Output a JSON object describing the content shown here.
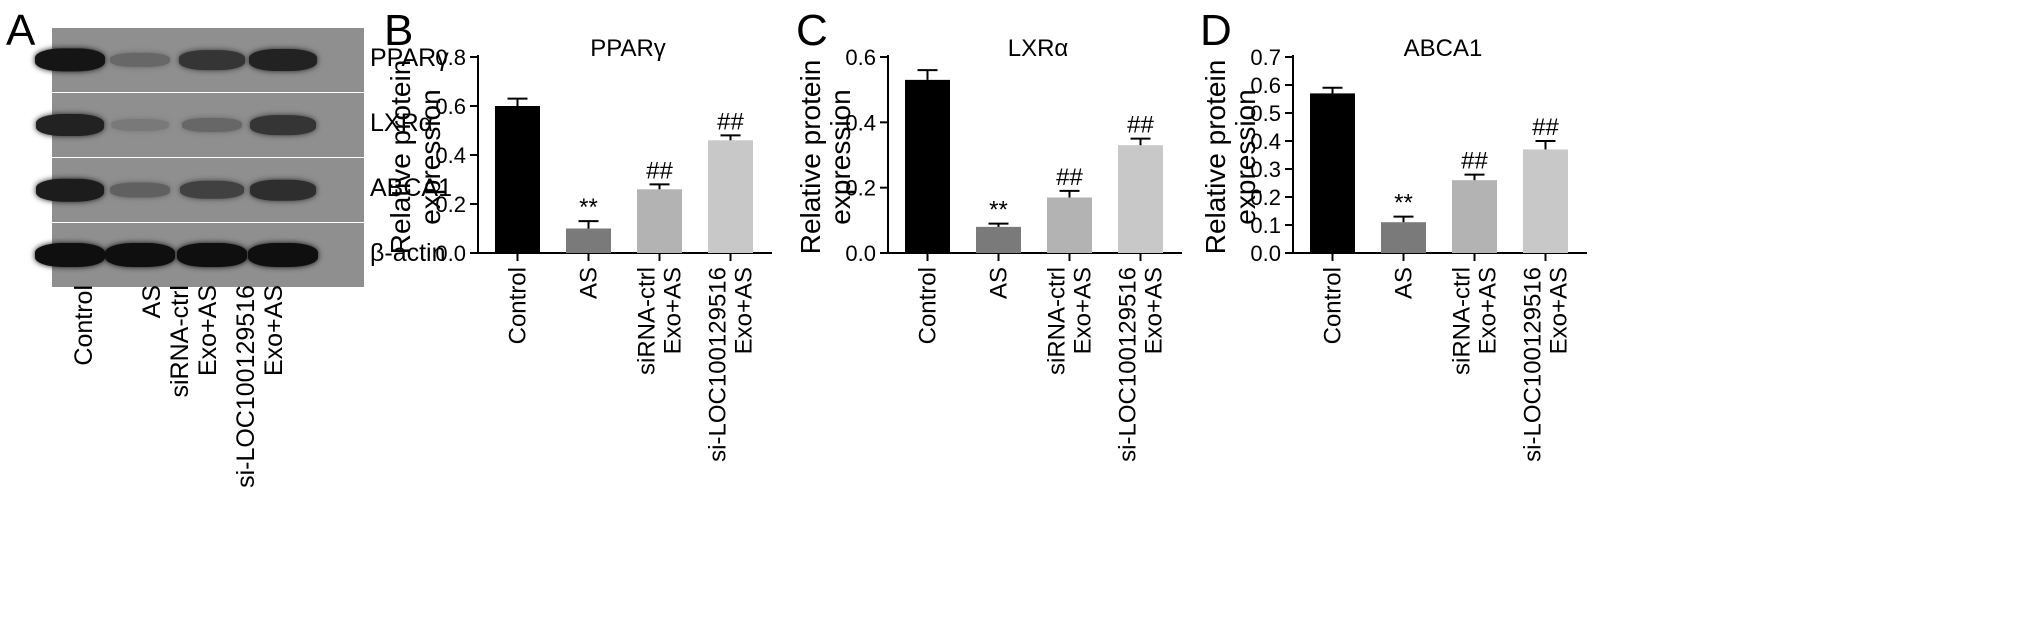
{
  "panels": {
    "a": "A",
    "b": "B",
    "c": "C",
    "d": "D"
  },
  "blot": {
    "rows": [
      {
        "label": "PPARγ",
        "intensity": [
          0.95,
          0.3,
          0.7,
          0.85
        ]
      },
      {
        "label": "LXRα",
        "intensity": [
          0.85,
          0.15,
          0.3,
          0.7
        ]
      },
      {
        "label": "ABCA1",
        "intensity": [
          0.9,
          0.35,
          0.6,
          0.75
        ]
      },
      {
        "label": "β-actin",
        "intensity": [
          1,
          1,
          1,
          1
        ]
      }
    ],
    "lanes": [
      {
        "line1": "Control",
        "line2": ""
      },
      {
        "line1": "AS",
        "line2": ""
      },
      {
        "line1": "siRNA-ctrl",
        "line2": "Exo+AS"
      },
      {
        "line1": "si-LOC100129516",
        "line2": "Exo+AS"
      }
    ]
  },
  "chart_data": [
    {
      "type": "bar",
      "title": "PPARγ",
      "ylabel": [
        "Relative protein",
        "expression"
      ],
      "categories": [
        [
          "Control"
        ],
        [
          "AS"
        ],
        [
          "siRNA-ctrl",
          "Exo+AS"
        ],
        [
          "si-LOC100129516",
          "Exo+AS"
        ]
      ],
      "values": [
        0.6,
        0.1,
        0.26,
        0.46
      ],
      "errors": [
        0.03,
        0.03,
        0.02,
        0.02
      ],
      "annotations": [
        "",
        "**",
        "##",
        "##"
      ],
      "colors": [
        "#000000",
        "#7a7a7a",
        "#b3b3b3",
        "#c8c8c8"
      ],
      "ylim": [
        0,
        0.8
      ],
      "yticks": [
        0.0,
        0.2,
        0.4,
        0.6,
        0.8
      ],
      "ytick_labels": [
        "0.0",
        "0.2",
        "0.4",
        "0.6",
        "0.8"
      ]
    },
    {
      "type": "bar",
      "title": "LXRα",
      "ylabel": [
        "Relative protein",
        "expression"
      ],
      "categories": [
        [
          "Control"
        ],
        [
          "AS"
        ],
        [
          "siRNA-ctrl",
          "Exo+AS"
        ],
        [
          "si-LOC100129516",
          "Exo+AS"
        ]
      ],
      "values": [
        0.53,
        0.08,
        0.17,
        0.33
      ],
      "errors": [
        0.03,
        0.01,
        0.02,
        0.02
      ],
      "annotations": [
        "",
        "**",
        "##",
        "##"
      ],
      "colors": [
        "#000000",
        "#7a7a7a",
        "#b3b3b3",
        "#c8c8c8"
      ],
      "ylim": [
        0,
        0.6
      ],
      "yticks": [
        0.0,
        0.2,
        0.4,
        0.6
      ],
      "ytick_labels": [
        "0.0",
        "0.2",
        "0.4",
        "0.6"
      ]
    },
    {
      "type": "bar",
      "title": "ABCA1",
      "ylabel": [
        "Relative protein",
        "expression"
      ],
      "categories": [
        [
          "Control"
        ],
        [
          "AS"
        ],
        [
          "siRNA-ctrl",
          "Exo+AS"
        ],
        [
          "si-LOC100129516",
          "Exo+AS"
        ]
      ],
      "values": [
        0.57,
        0.11,
        0.26,
        0.37
      ],
      "errors": [
        0.02,
        0.02,
        0.02,
        0.03
      ],
      "annotations": [
        "",
        "**",
        "##",
        "##"
      ],
      "colors": [
        "#000000",
        "#7a7a7a",
        "#b3b3b3",
        "#c8c8c8"
      ],
      "ylim": [
        0,
        0.7
      ],
      "yticks": [
        0.0,
        0.1,
        0.2,
        0.3,
        0.4,
        0.5,
        0.6,
        0.7
      ],
      "ytick_labels": [
        "0.0",
        "0.1",
        "0.2",
        "0.3",
        "0.4",
        "0.5",
        "0.6",
        "0.7"
      ]
    }
  ]
}
